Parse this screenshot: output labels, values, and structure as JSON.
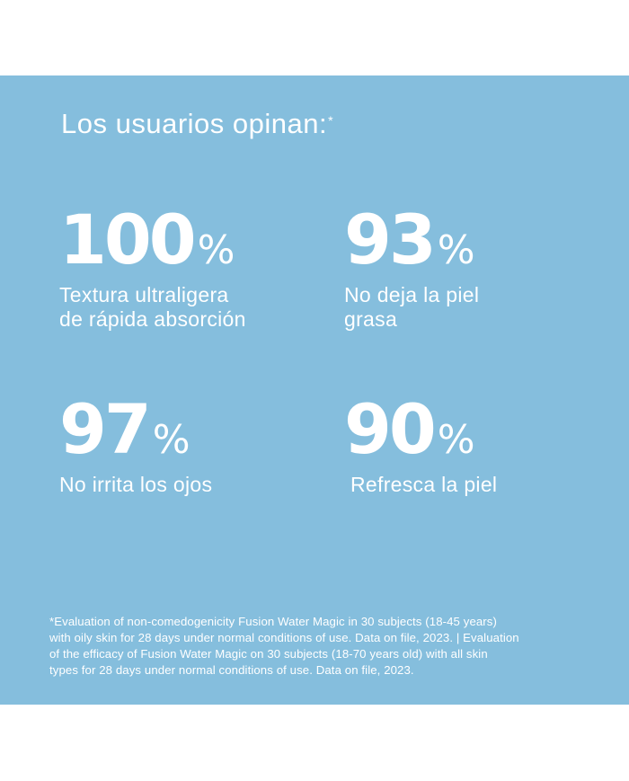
{
  "header": {
    "title": "Los usuarios opinan:",
    "title_mark": "*"
  },
  "stats": [
    {
      "value": "100",
      "unit": "%",
      "line1": "Textura ultraligera",
      "line2": "de rápida absorción"
    },
    {
      "value": "93",
      "unit": "%",
      "line1": "No deja la piel",
      "line2": "grasa"
    },
    {
      "value": "97",
      "unit": "%",
      "line1": "No irrita los ojos",
      "line2": ""
    },
    {
      "value": "90",
      "unit": "%",
      "line1": "Refresca la piel",
      "line2": ""
    }
  ],
  "footnote": {
    "line1": "*Evaluation of non-comedogenicity Fusion Water Magic in 30 subjects (18-45 years)",
    "line2": "with oily skin for 28 days under normal conditions of use. Data on file, 2023. | Evaluation",
    "line3": "of the efficacy of Fusion Water Magic on 30 subjects (18-70 years old) with all skin",
    "line4": "types for 28 days under normal conditions of use. Data on file, 2023."
  },
  "colors": {
    "panel_background": "#85bedd",
    "text": "#ffffff",
    "page_background": "#ffffff"
  }
}
